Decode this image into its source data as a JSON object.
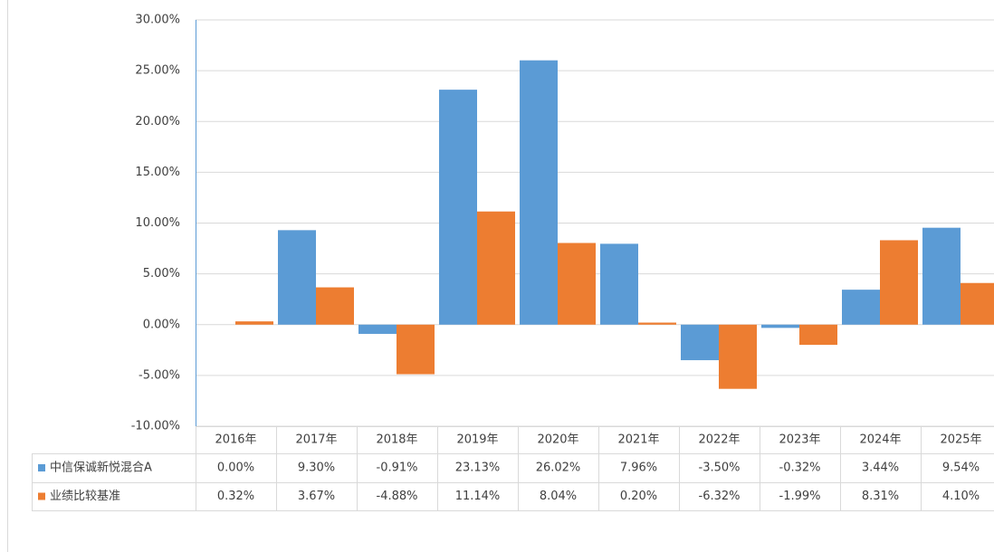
{
  "chart_data": {
    "type": "bar",
    "categories": [
      "2016年",
      "2017年",
      "2018年",
      "2019年",
      "2020年",
      "2021年",
      "2022年",
      "2023年",
      "2024年",
      "2025年"
    ],
    "series": [
      {
        "name": "中信保诚新悦混合A",
        "color": "#5b9bd5",
        "values": [
          0,
          9.3,
          -0.91,
          23.13,
          26.02,
          7.96,
          -3.5,
          -0.32,
          3.44,
          9.54
        ],
        "value_labels": [
          "0.00%",
          "9.30%",
          "-0.91%",
          "23.13%",
          "26.02%",
          "7.96%",
          "-3.50%",
          "-0.32%",
          "3.44%",
          "9.54%"
        ]
      },
      {
        "name": "业绩比较基准",
        "color": "#ed7d31",
        "values": [
          0.32,
          3.67,
          -4.88,
          11.14,
          8.04,
          0.2,
          -6.32,
          -1.99,
          8.31,
          4.1
        ],
        "value_labels": [
          "0.32%",
          "3.67%",
          "-4.88%",
          "11.14%",
          "8.04%",
          "0.20%",
          "-6.32%",
          "-1.99%",
          "8.31%",
          "4.10%"
        ]
      }
    ],
    "ylim": [
      -10,
      30
    ],
    "yticks": [
      {
        "value": -10,
        "label": "-10.00%"
      },
      {
        "value": -5,
        "label": "-5.00%"
      },
      {
        "value": 0,
        "label": "0.00%"
      },
      {
        "value": 5,
        "label": "5.00%"
      },
      {
        "value": 10,
        "label": "10.00%"
      },
      {
        "value": 15,
        "label": "15.00%"
      },
      {
        "value": 20,
        "label": "20.00%"
      },
      {
        "value": 25,
        "label": "25.00%"
      },
      {
        "value": 30,
        "label": "30.00%"
      }
    ],
    "grid": true,
    "data_table": true
  }
}
